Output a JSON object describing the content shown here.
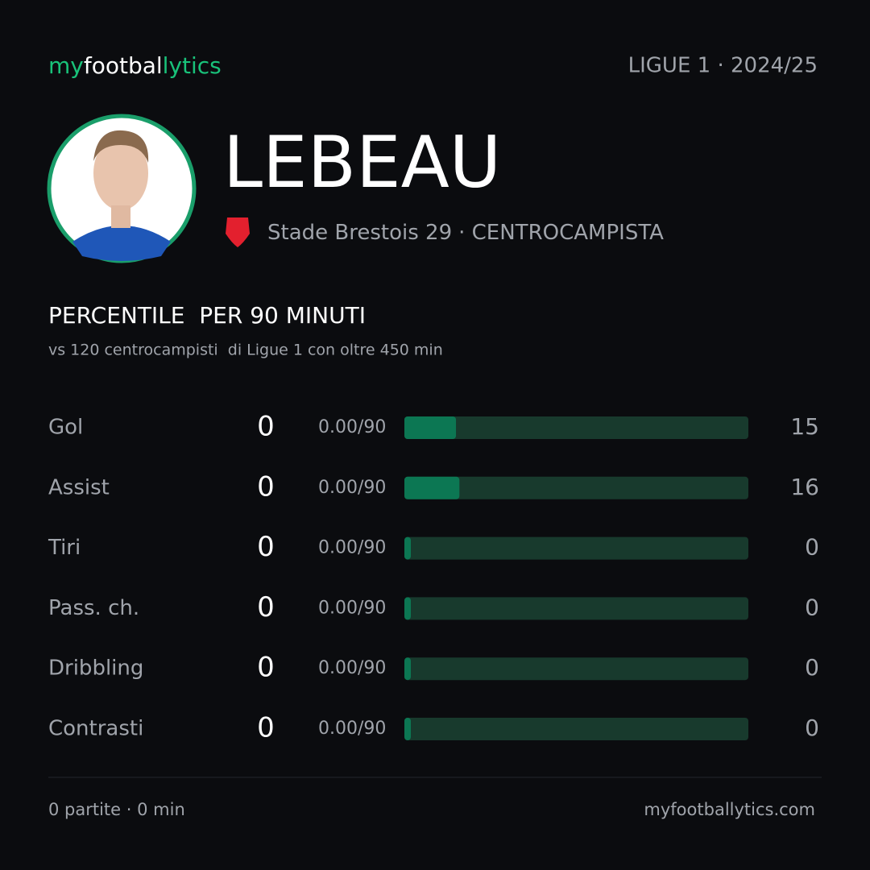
{
  "header": {
    "logo": [
      "my",
      "footbal",
      "lytics"
    ],
    "league": "LIGUE 1 · 2024/25"
  },
  "player": {
    "name": "LEBEAU",
    "club": "Stade Brestois 29",
    "role": "· CENTROCAMPISTA"
  },
  "section": {
    "title": "PERCENTILE  PER 90 MINUTI",
    "subtitle": "vs 120 centrocampisti  di Ligue 1 con oltre 450 min"
  },
  "xlim": [
    0,
    100
  ],
  "rows": [
    {
      "label": "Gol",
      "value": 0,
      "per90": "0.00/90",
      "percentile": 15
    },
    {
      "label": "Assist",
      "value": 0,
      "per90": "0.00/90",
      "percentile": 16
    },
    {
      "label": "Tiri",
      "value": 0,
      "per90": "0.00/90",
      "percentile": 0
    },
    {
      "label": "Pass. ch.",
      "value": 0,
      "per90": "0.00/90",
      "percentile": 0
    },
    {
      "label": "Dribbling",
      "value": 0,
      "per90": "0.00/90",
      "percentile": 0
    },
    {
      "label": "Contrasti",
      "value": 0,
      "per90": "0.00/90",
      "percentile": 0
    }
  ],
  "footer": {
    "stats": "0 partite · 0 min",
    "site": "myfootballytics.com"
  }
}
